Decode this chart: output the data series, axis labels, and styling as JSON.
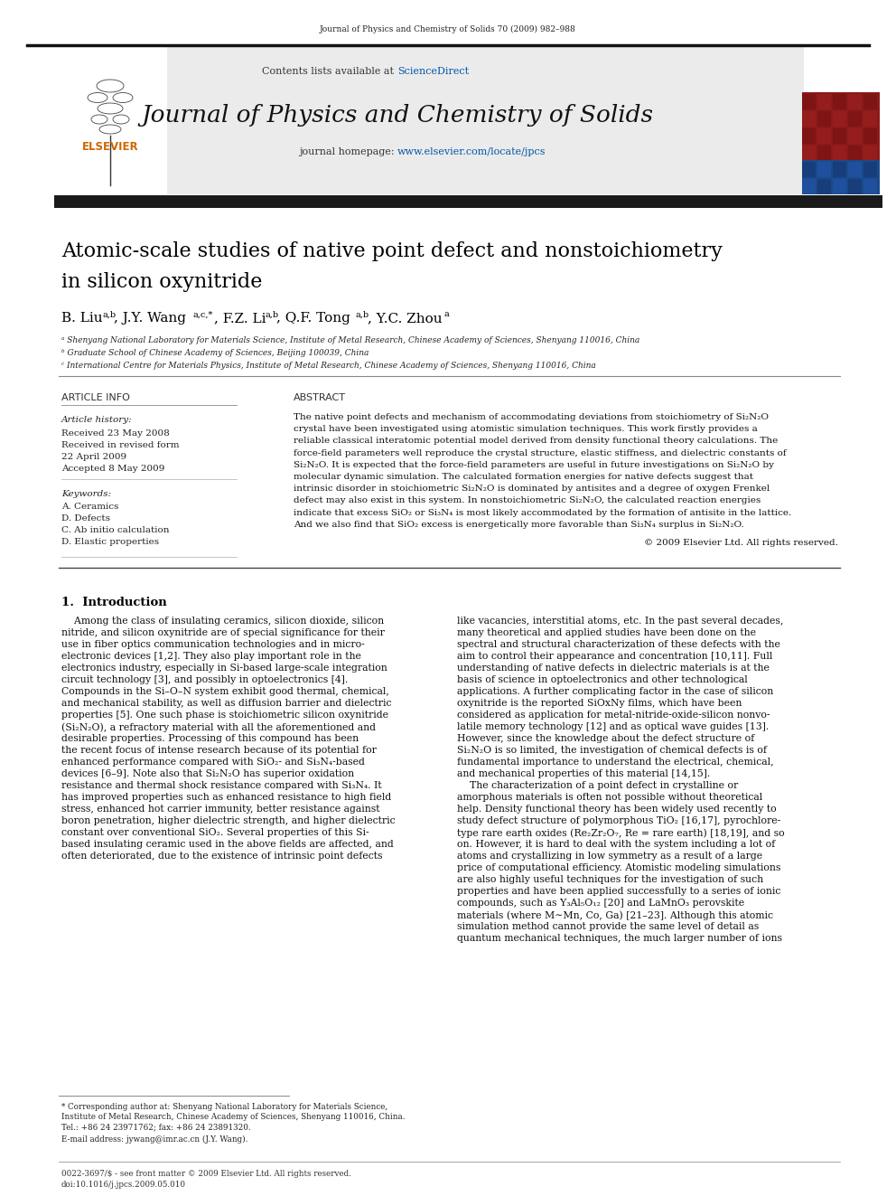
{
  "journal_ref": "Journal of Physics and Chemistry of Solids 70 (2009) 982–988",
  "journal_name": "Journal of Physics and Chemistry of Solids",
  "contents_line": "Contents lists available at ScienceDirect",
  "homepage_line": "journal homepage: www.elsevier.com/locate/jpcs",
  "title_line1": "Atomic-scale studies of native point defect and nonstoichiometry",
  "title_line2": "in silicon oxynitride",
  "affil_a": "ᵃ Shenyang National Laboratory for Materials Science, Institute of Metal Research, Chinese Academy of Sciences, Shenyang 110016, China",
  "affil_b": "ᵇ Graduate School of Chinese Academy of Sciences, Beijing 100039, China",
  "affil_c": "ᶜ International Centre for Materials Physics, Institute of Metal Research, Chinese Academy of Sciences, Shenyang 110016, China",
  "article_info_title": "ARTICLE INFO",
  "abstract_title": "ABSTRACT",
  "keywords": [
    "A. Ceramics",
    "D. Defects",
    "C. Ab initio calculation",
    "D. Elastic properties"
  ],
  "abstract_lines": [
    "The native point defects and mechanism of accommodating deviations from stoichiometry of Si₂N₂O",
    "crystal have been investigated using atomistic simulation techniques. This work firstly provides a",
    "reliable classical interatomic potential model derived from density functional theory calculations. The",
    "force-field parameters well reproduce the crystal structure, elastic stiffness, and dielectric constants of",
    "Si₂N₂O. It is expected that the force-field parameters are useful in future investigations on Si₂N₂O by",
    "molecular dynamic simulation. The calculated formation energies for native defects suggest that",
    "intrinsic disorder in stoichiometric Si₂N₂O is dominated by antisites and a degree of oxygen Frenkel",
    "defect may also exist in this system. In nonstoichiometric Si₂N₂O, the calculated reaction energies",
    "indicate that excess SiO₂ or Si₃N₄ is most likely accommodated by the formation of antisite in the lattice.",
    "And we also find that SiO₂ excess is energetically more favorable than Si₃N₄ surplus in Si₂N₂O."
  ],
  "copyright": "© 2009 Elsevier Ltd. All rights reserved.",
  "left_intro_lines": [
    "    Among the class of insulating ceramics, silicon dioxide, silicon",
    "nitride, and silicon oxynitride are of special significance for their",
    "use in fiber optics communication technologies and in micro-",
    "electronic devices [1,2]. They also play important role in the",
    "electronics industry, especially in Si-based large-scale integration",
    "circuit technology [3], and possibly in optoelectronics [4].",
    "Compounds in the Si–O–N system exhibit good thermal, chemical,",
    "and mechanical stability, as well as diffusion barrier and dielectric",
    "properties [5]. One such phase is stoichiometric silicon oxynitride",
    "(Si₂N₂O), a refractory material with all the aforementioned and",
    "desirable properties. Processing of this compound has been",
    "the recent focus of intense research because of its potential for",
    "enhanced performance compared with SiO₂- and Si₃N₄-based",
    "devices [6–9]. Note also that Si₂N₂O has superior oxidation",
    "resistance and thermal shock resistance compared with Si₃N₄. It",
    "has improved properties such as enhanced resistance to high field",
    "stress, enhanced hot carrier immunity, better resistance against",
    "boron penetration, higher dielectric strength, and higher dielectric",
    "constant over conventional SiO₂. Several properties of this Si-",
    "based insulating ceramic used in the above fields are affected, and",
    "often deteriorated, due to the existence of intrinsic point defects"
  ],
  "right_intro_lines": [
    "like vacancies, interstitial atoms, etc. In the past several decades,",
    "many theoretical and applied studies have been done on the",
    "spectral and structural characterization of these defects with the",
    "aim to control their appearance and concentration [10,11]. Full",
    "understanding of native defects in dielectric materials is at the",
    "basis of science in optoelectronics and other technological",
    "applications. A further complicating factor in the case of silicon",
    "oxynitride is the reported SiOxNy films, which have been",
    "considered as application for metal-nitride-oxide-silicon nonvo-",
    "latile memory technology [12] and as optical wave guides [13].",
    "However, since the knowledge about the defect structure of",
    "Si₂N₂O is so limited, the investigation of chemical defects is of",
    "fundamental importance to understand the electrical, chemical,",
    "and mechanical properties of this material [14,15].",
    "    The characterization of a point defect in crystalline or",
    "amorphous materials is often not possible without theoretical",
    "help. Density functional theory has been widely used recently to",
    "study defect structure of polymorphous TiO₂ [16,17], pyrochlore-",
    "type rare earth oxides (Re₂Zr₂O₇, Re = rare earth) [18,19], and so",
    "on. However, it is hard to deal with the system including a lot of",
    "atoms and crystallizing in low symmetry as a result of a large",
    "price of computational efficiency. Atomistic modeling simulations",
    "are also highly useful techniques for the investigation of such",
    "properties and have been applied successfully to a series of ionic",
    "compounds, such as Y₃Al₅O₁₂ [20] and LaMnO₃ perovskite",
    "materials (where M∼Mn, Co, Ga) [21–23]. Although this atomic",
    "simulation method cannot provide the same level of detail as",
    "quantum mechanical techniques, the much larger number of ions"
  ],
  "footnote_lines": [
    "* Corresponding author at: Shenyang National Laboratory for Materials Science,",
    "Institute of Metal Research, Chinese Academy of Sciences, Shenyang 110016, China.",
    "Tel.: +86 24 23971762; fax: +86 24 23891320."
  ],
  "footnote_email": "E-mail address: jywang@imr.ac.cn (J.Y. Wang).",
  "footer_left": "0022-3697/$ - see front matter © 2009 Elsevier Ltd. All rights reserved.",
  "footer_doi": "doi:10.1016/j.jpcs.2009.05.010",
  "bg_color": "#ffffff",
  "orange_color": "#cc6600",
  "blue_link_color": "#0055aa",
  "text_color": "#000000"
}
